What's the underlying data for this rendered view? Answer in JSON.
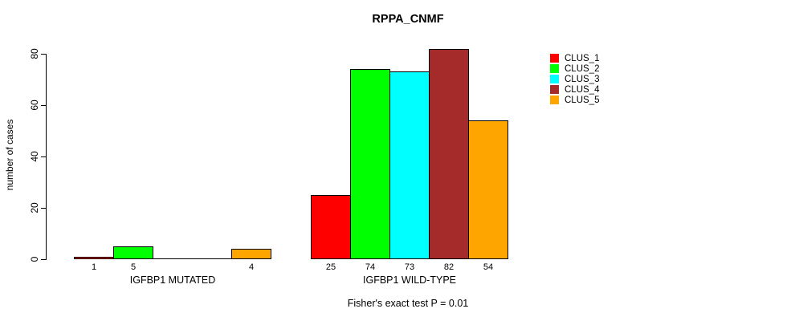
{
  "chart_data": {
    "type": "bar",
    "title": "RPPA_CNMF",
    "ylabel": "number of cases",
    "xlabel": "",
    "ylim": [
      0,
      80
    ],
    "yticks": [
      0,
      20,
      40,
      60,
      80
    ],
    "grid": false,
    "legend_position": "right",
    "categories": [
      "IGFBP1 MUTATED",
      "IGFBP1 WILD-TYPE"
    ],
    "series": [
      {
        "name": "CLUS_1",
        "color": "#FF0000",
        "values": [
          1,
          25
        ]
      },
      {
        "name": "CLUS_2",
        "color": "#00FF00",
        "values": [
          5,
          74
        ]
      },
      {
        "name": "CLUS_3",
        "color": "#00FFFF",
        "values": [
          0,
          73
        ]
      },
      {
        "name": "CLUS_4",
        "color": "#A52A2A",
        "values": [
          0,
          82
        ]
      },
      {
        "name": "CLUS_5",
        "color": "#FFA500",
        "values": [
          4,
          54
        ]
      }
    ],
    "bar_value_labels": {
      "IGFBP1 MUTATED": [
        "1",
        "5",
        "",
        "",
        "4"
      ],
      "IGFBP1 WILD-TYPE": [
        "25",
        "74",
        "73",
        "82",
        "54"
      ]
    },
    "annotation": "Fisher's exact test P = 0.01"
  }
}
